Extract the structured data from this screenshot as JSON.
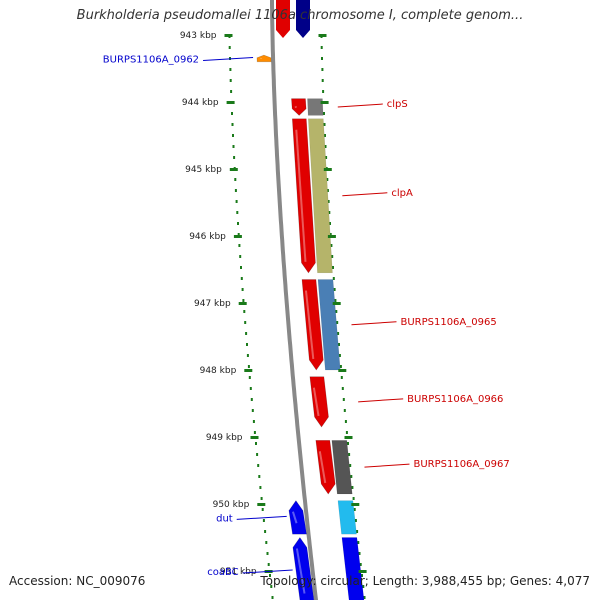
{
  "title": "Burkholderia pseudomallei 1106a chromosome I, complete genom...",
  "footer": {
    "accession": "Accession: NC_009076",
    "summary": "Topology: circular; Length: 3,988,455 bp; Genes: 4,077"
  },
  "colors": {
    "backbone": "#888888",
    "tick": "#1a7a1a",
    "forward_label": "#cc0000",
    "reverse_label": "#0000cc"
  },
  "ticks": [
    {
      "label": "943 kbp",
      "pos_kbp": 943
    },
    {
      "label": "944 kbp",
      "pos_kbp": 944
    },
    {
      "label": "945 kbp",
      "pos_kbp": 945
    },
    {
      "label": "946 kbp",
      "pos_kbp": 946
    },
    {
      "label": "947 kbp",
      "pos_kbp": 947
    },
    {
      "label": "948 kbp",
      "pos_kbp": 948
    },
    {
      "label": "949 kbp",
      "pos_kbp": 949
    },
    {
      "label": "950 kbp",
      "pos_kbp": 950
    },
    {
      "label": "951 kbp",
      "pos_kbp": 951
    }
  ],
  "genes": [
    {
      "name": "BURPS1106A_0962",
      "strand": "reverse",
      "start_kbp": 943.3,
      "end_kbp": 943.4,
      "color": "#ff8c00",
      "label_side": "left"
    },
    {
      "name": "clpS",
      "strand": "forward",
      "start_kbp": 943.95,
      "end_kbp": 944.2,
      "color": "#e00000",
      "label_side": "right"
    },
    {
      "name": "clpA",
      "strand": "forward",
      "start_kbp": 944.25,
      "end_kbp": 946.55,
      "color": "#e00000",
      "label_side": "right"
    },
    {
      "name": "BURPS1106A_0965",
      "strand": "forward",
      "start_kbp": 946.65,
      "end_kbp": 948.0,
      "color": "#e00000",
      "label_side": "right"
    },
    {
      "name": "BURPS1106A_0966",
      "strand": "forward",
      "start_kbp": 948.1,
      "end_kbp": 948.85,
      "color": "#e00000",
      "label_side": "right"
    },
    {
      "name": "BURPS1106A_0967",
      "strand": "forward",
      "start_kbp": 949.05,
      "end_kbp": 949.85,
      "color": "#e00000",
      "label_side": "right"
    },
    {
      "name": "dut",
      "strand": "reverse",
      "start_kbp": 949.95,
      "end_kbp": 950.45,
      "color": "#0000ee",
      "label_side": "left"
    },
    {
      "name": "coaBC",
      "strand": "reverse",
      "start_kbp": 950.5,
      "end_kbp": 951.5,
      "color": "#0000ee",
      "label_side": "left"
    }
  ],
  "features": [
    {
      "start_kbp": 943.95,
      "end_kbp": 944.2,
      "color": "#777777"
    },
    {
      "start_kbp": 944.25,
      "end_kbp": 946.55,
      "color": "#b5b46a"
    },
    {
      "start_kbp": 946.65,
      "end_kbp": 948.0,
      "color": "#4a7fb5"
    },
    {
      "start_kbp": 949.05,
      "end_kbp": 949.85,
      "color": "#555555"
    },
    {
      "start_kbp": 949.95,
      "end_kbp": 950.45,
      "color": "#22bbee"
    },
    {
      "start_kbp": 950.5,
      "end_kbp": 951.5,
      "color": "#0000ee"
    }
  ],
  "top_blocks": [
    {
      "color": "#e00000"
    },
    {
      "color": "#000088"
    }
  ]
}
